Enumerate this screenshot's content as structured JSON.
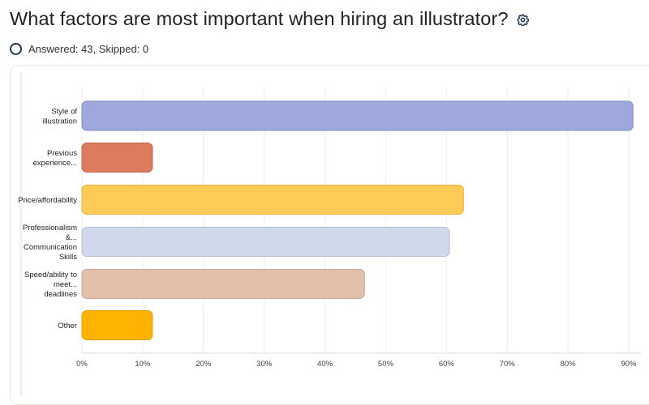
{
  "header": {
    "title": "What factors are most important when hiring an illustrator?",
    "settings_icon": "gear-icon"
  },
  "summary": {
    "text": "Answered: 43, Skipped: 0",
    "status_icon": "circle-outline-icon"
  },
  "chart_data": {
    "type": "bar",
    "orientation": "horizontal",
    "categories": [
      [
        "Style of",
        "illustration"
      ],
      [
        "Previous",
        "experience..."
      ],
      [
        "Price/affordability"
      ],
      [
        "Professionalism",
        "&...",
        "Communication",
        "Skills"
      ],
      [
        "Speed/ability to",
        "meet...",
        "deadlines"
      ],
      [
        "Other"
      ]
    ],
    "values": [
      90.7,
      11.6,
      62.8,
      60.5,
      46.5,
      11.6
    ],
    "colors": [
      "#9fa8dc",
      "#dd7b5e",
      "#fecb57",
      "#d0d9ec",
      "#e3bfac",
      "#feb201"
    ],
    "strokes": [
      "#7e88c4",
      "#c2644a",
      "#e7b23d",
      "#b2bfd9",
      "#c9a491",
      "#e39e00"
    ],
    "xticks": [
      "0%",
      "10%",
      "20%",
      "30%",
      "40%",
      "50%",
      "60%",
      "70%",
      "80%",
      "90%"
    ],
    "xlim": [
      0,
      93
    ],
    "grid": true
  }
}
